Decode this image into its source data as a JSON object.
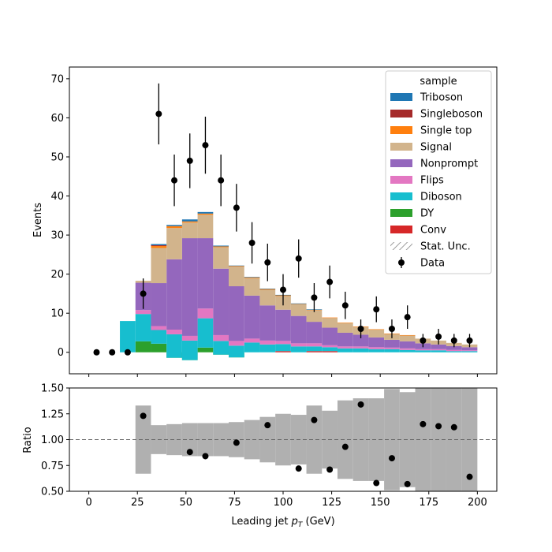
{
  "chart_data": [
    {
      "type": "bar",
      "panel": "main",
      "stacked": true,
      "xlabel": "Leading jet  p_T (GeV)",
      "ylabel": "Events",
      "xlim": [
        -10,
        210
      ],
      "ylim": [
        -5.5,
        73
      ],
      "yticks": [
        0,
        10,
        20,
        30,
        40,
        50,
        60,
        70
      ],
      "legend": {
        "title": "sample",
        "placement": "top-right",
        "entries": [
          {
            "label": "Triboson",
            "color": "#1f77b4",
            "kind": "patch"
          },
          {
            "label": "Singleboson",
            "color": "#a52a2a",
            "kind": "patch"
          },
          {
            "label": "Single top",
            "color": "#ff7f0e",
            "kind": "patch"
          },
          {
            "label": "Signal",
            "color": "#d2b48c",
            "kind": "patch"
          },
          {
            "label": "Nonprompt",
            "color": "#9467bd",
            "kind": "patch"
          },
          {
            "label": "Flips",
            "color": "#e377c2",
            "kind": "patch"
          },
          {
            "label": "Diboson",
            "color": "#17becf",
            "kind": "patch"
          },
          {
            "label": "DY",
            "color": "#2ca02c",
            "kind": "patch"
          },
          {
            "label": "Conv",
            "color": "#d62728",
            "kind": "patch"
          },
          {
            "label": "Stat. Unc.",
            "color": "#808080",
            "kind": "hatch"
          },
          {
            "label": "Data",
            "color": "#000000",
            "kind": "errorbar"
          }
        ]
      },
      "bin_edges": [
        0,
        8,
        16,
        24,
        32,
        40,
        48,
        56,
        64,
        72,
        80,
        88,
        96,
        104,
        112,
        120,
        128,
        136,
        144,
        152,
        160,
        168,
        176,
        184,
        192,
        200
      ],
      "series": [
        {
          "name": "Conv",
          "color": "#d62728",
          "values": [
            0,
            0,
            0,
            0,
            0,
            0,
            0,
            0,
            0,
            0,
            0,
            0,
            0.3,
            0,
            0.3,
            0.3,
            0,
            0,
            0,
            0,
            0,
            0,
            0,
            0,
            0
          ]
        },
        {
          "name": "DY",
          "color": "#2ca02c",
          "values": [
            0,
            0,
            0,
            2.8,
            2.2,
            -1.4,
            -2.0,
            1.2,
            -0.6,
            -1.3,
            0,
            0,
            0,
            0,
            0,
            0,
            0,
            0,
            0,
            0,
            0,
            0,
            0,
            0,
            0
          ]
        },
        {
          "name": "Diboson",
          "color": "#17becf",
          "values": [
            0,
            0,
            8.0,
            7.0,
            3.5,
            6.0,
            5.0,
            7.5,
            3.5,
            3.0,
            2.5,
            2.0,
            1.8,
            1.5,
            1.2,
            1.0,
            1.0,
            1.0,
            0.8,
            0.8,
            0.6,
            0.5,
            0.5,
            0.3,
            0.3
          ]
        },
        {
          "name": "Flips",
          "color": "#e377c2",
          "values": [
            0,
            0,
            0,
            1.0,
            1.0,
            1.2,
            1.2,
            2.5,
            1.5,
            1.2,
            1.0,
            1.0,
            0.8,
            0.8,
            0.8,
            0.5,
            0.5,
            0.5,
            0.5,
            0.4,
            0.4,
            0.3,
            0.3,
            0.3,
            0.2
          ]
        },
        {
          "name": "Nonprompt",
          "color": "#9467bd",
          "values": [
            0,
            0,
            0,
            7.0,
            11.0,
            18.0,
            25.0,
            18.0,
            17.0,
            14.0,
            11.0,
            9.0,
            8.0,
            7.0,
            5.5,
            4.5,
            3.5,
            3.0,
            2.5,
            2.0,
            1.8,
            1.5,
            1.2,
            1.0,
            0.8
          ]
        },
        {
          "name": "Signal",
          "color": "#d2b48c",
          "values": [
            0,
            0,
            0,
            0.5,
            9.0,
            8.0,
            4.0,
            6.0,
            5.5,
            5.0,
            4.5,
            4.0,
            3.5,
            3.0,
            3.0,
            2.5,
            2.5,
            2.0,
            2.0,
            1.5,
            1.5,
            1.2,
            1.0,
            0.8,
            0.7
          ]
        },
        {
          "name": "Single top",
          "color": "#ff7f0e",
          "values": [
            0,
            0,
            0,
            0,
            0.5,
            0.5,
            0.3,
            0.3,
            0.2,
            0.2,
            0.2,
            0.2,
            0.2,
            0.1,
            0.1,
            0.1,
            0.1,
            0.1,
            0.1,
            0.1,
            0.1,
            0,
            0,
            0,
            0
          ]
        },
        {
          "name": "Singleboson",
          "color": "#a52a2a",
          "values": [
            0,
            0,
            0,
            0,
            0.2,
            0,
            0,
            0,
            0,
            0,
            0,
            0,
            0,
            0,
            0,
            0,
            0,
            0,
            0,
            0,
            0,
            0,
            0,
            0,
            0
          ]
        },
        {
          "name": "Triboson",
          "color": "#1f77b4",
          "values": [
            0,
            0,
            0,
            0,
            0.3,
            0.3,
            0.5,
            0.4,
            0.2,
            0.1,
            0.1,
            0.1,
            0.1,
            0.1,
            0.1,
            0,
            0,
            0,
            0,
            0,
            0,
            0,
            0,
            0,
            0
          ]
        }
      ],
      "data_points": {
        "name": "Data",
        "x": [
          4,
          12,
          20,
          28,
          36,
          44,
          52,
          60,
          68,
          76,
          84,
          92,
          100,
          108,
          116,
          124,
          132,
          140,
          148,
          156,
          164,
          172,
          180,
          188,
          196
        ],
        "y": [
          0,
          0,
          0,
          15,
          61,
          44,
          49,
          53,
          44,
          37,
          28,
          23,
          16,
          24,
          14,
          18,
          12,
          6,
          11,
          6,
          9,
          3,
          4,
          3,
          3
        ],
        "yerr": [
          0,
          0,
          0,
          3.9,
          7.8,
          6.6,
          7.0,
          7.3,
          6.6,
          6.1,
          5.3,
          4.8,
          4.0,
          4.9,
          3.7,
          4.2,
          3.5,
          2.4,
          3.3,
          2.4,
          3.0,
          1.7,
          2.0,
          1.7,
          1.7
        ]
      }
    },
    {
      "type": "scatter",
      "panel": "ratio",
      "xlabel": "Leading jet  p_T (GeV)",
      "ylabel": "Ratio",
      "xlim": [
        -10,
        210
      ],
      "ylim": [
        0.5,
        1.5
      ],
      "xticks": [
        0,
        25,
        50,
        75,
        100,
        125,
        150,
        175,
        200
      ],
      "yticks": [
        0.5,
        0.75,
        1.0,
        1.25,
        1.5
      ],
      "reference_line": 1.0,
      "uncertainty_band": {
        "color": "#b0b0b0",
        "bin_edges": [
          24,
          32,
          40,
          48,
          56,
          64,
          72,
          80,
          88,
          96,
          104,
          112,
          120,
          128,
          136,
          144,
          152,
          160,
          168,
          176,
          184,
          192,
          200
        ],
        "half_width": [
          0.33,
          0.14,
          0.15,
          0.16,
          0.16,
          0.16,
          0.17,
          0.19,
          0.22,
          0.25,
          0.24,
          0.33,
          0.28,
          0.38,
          0.4,
          0.4,
          0.49,
          0.46,
          0.6,
          0.6,
          0.6,
          0.6
        ]
      },
      "points": {
        "x": [
          28,
          52,
          60,
          76,
          92,
          108,
          116,
          124,
          132,
          140,
          148,
          156,
          164,
          172,
          180,
          188,
          196
        ],
        "y": [
          1.23,
          0.88,
          0.84,
          0.97,
          1.14,
          0.72,
          1.19,
          0.71,
          0.93,
          1.34,
          0.58,
          0.82,
          0.57,
          1.15,
          1.13,
          1.12,
          0.64
        ]
      }
    }
  ]
}
